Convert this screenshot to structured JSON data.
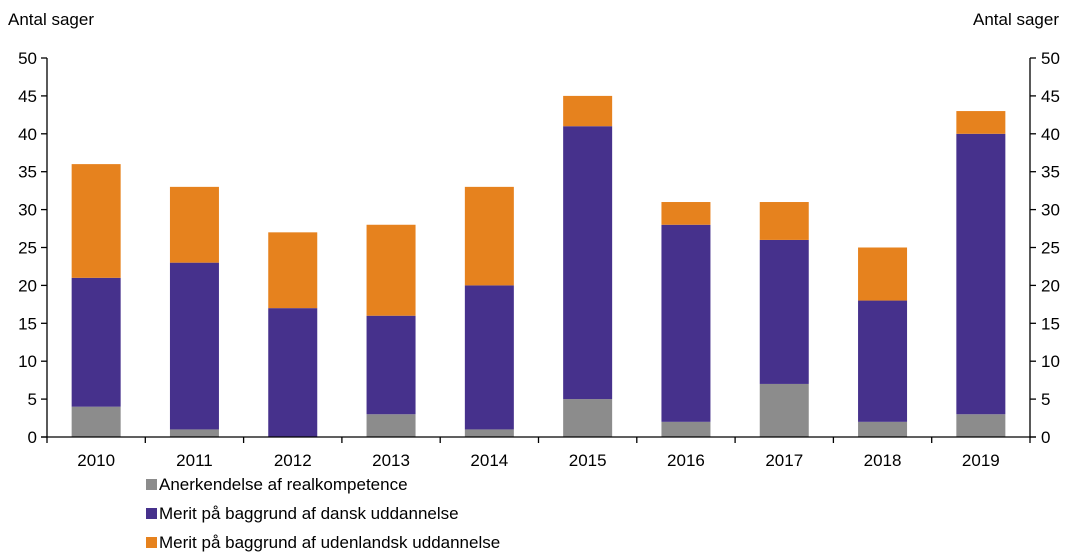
{
  "chart_data": {
    "type": "bar",
    "stacked": true,
    "title": "",
    "ylabel_left": "Antal sager",
    "ylabel_right": "Antal sager",
    "xlabel": "",
    "ylim": [
      0,
      50
    ],
    "yticks": [
      0,
      5,
      10,
      15,
      20,
      25,
      30,
      35,
      40,
      45,
      50
    ],
    "categories": [
      "2010",
      "2011",
      "2012",
      "2013",
      "2014",
      "2015",
      "2016",
      "2017",
      "2018",
      "2019"
    ],
    "series": [
      {
        "name": "Anerkendelse af realkompetence",
        "color": "#8c8c8c",
        "values": [
          4,
          1,
          0,
          3,
          1,
          5,
          2,
          7,
          2,
          3
        ]
      },
      {
        "name": "Merit på baggrund af dansk uddannelse",
        "color": "#46318c",
        "values": [
          17,
          22,
          17,
          13,
          19,
          36,
          26,
          19,
          16,
          37
        ]
      },
      {
        "name": "Merit på baggrund af udenlandsk uddannelse",
        "color": "#e6821e",
        "values": [
          15,
          10,
          10,
          12,
          13,
          4,
          3,
          5,
          7,
          3
        ]
      }
    ],
    "grid": false,
    "legend_position": "bottom-left"
  }
}
